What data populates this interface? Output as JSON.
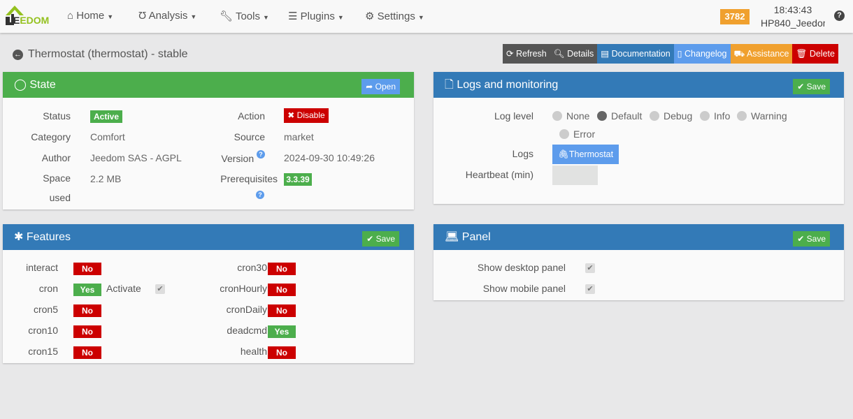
{
  "topbar": {
    "logo": "JEEDOM",
    "nav": [
      {
        "label": "Home",
        "icon": "home-icon"
      },
      {
        "label": "Analysis",
        "icon": "stethoscope-icon"
      },
      {
        "label": "Tools",
        "icon": "wrench-icon"
      },
      {
        "label": "Plugins",
        "icon": "list-check-icon"
      },
      {
        "label": "Settings",
        "icon": "gear-icon"
      }
    ],
    "badge": "3782",
    "time": "18:43:43",
    "host": "HP840_Jeedom"
  },
  "page": {
    "title": "Thermostat (thermostat) - stable"
  },
  "actions": [
    {
      "label": "Refresh",
      "color": "#555555"
    },
    {
      "label": "Details",
      "color": "#555555"
    },
    {
      "label": "Documentation",
      "color": "#337ab7"
    },
    {
      "label": "Changelog",
      "color": "#5d9cec"
    },
    {
      "label": "Assistance",
      "color": "#f0a02e"
    },
    {
      "label": "Delete",
      "color": "#cc0000"
    }
  ],
  "state": {
    "title": "State",
    "open": "Open",
    "status_label": "Status",
    "status": "Active",
    "category_label": "Category",
    "category": "Comfort",
    "author_label": "Author",
    "author": "Jeedom SAS - AGPL",
    "space_label": "Space used",
    "space": "2.2 MB",
    "action_label": "Action",
    "action": "Disable",
    "source_label": "Source",
    "source": "market",
    "version_label": "Version",
    "version": "2024-09-30 10:49:26",
    "prereq_label": "Prerequisites",
    "prereq": "3.3.39"
  },
  "logs": {
    "title": "Logs and monitoring",
    "save": "Save",
    "level_label": "Log level",
    "levels": [
      "None",
      "Default",
      "Debug",
      "Info",
      "Warning",
      "Error"
    ],
    "selected": "Default",
    "logs_label": "Logs",
    "log_button": "Thermostat",
    "heartbeat_label": "Heartbeat (min)",
    "heartbeat": ""
  },
  "features": {
    "title": "Features",
    "save": "Save",
    "activate": "Activate",
    "left": [
      {
        "name": "interact",
        "value": "No"
      },
      {
        "name": "cron",
        "value": "Yes"
      },
      {
        "name": "cron5",
        "value": "No"
      },
      {
        "name": "cron10",
        "value": "No"
      },
      {
        "name": "cron15",
        "value": "No"
      }
    ],
    "right": [
      {
        "name": "cron30",
        "value": "No"
      },
      {
        "name": "cronHourly",
        "value": "No"
      },
      {
        "name": "cronDaily",
        "value": "No"
      },
      {
        "name": "deadcmd",
        "value": "Yes"
      },
      {
        "name": "health",
        "value": "No"
      }
    ]
  },
  "panel": {
    "title": "Panel",
    "save": "Save",
    "desktop": "Show desktop panel",
    "mobile": "Show mobile panel"
  }
}
